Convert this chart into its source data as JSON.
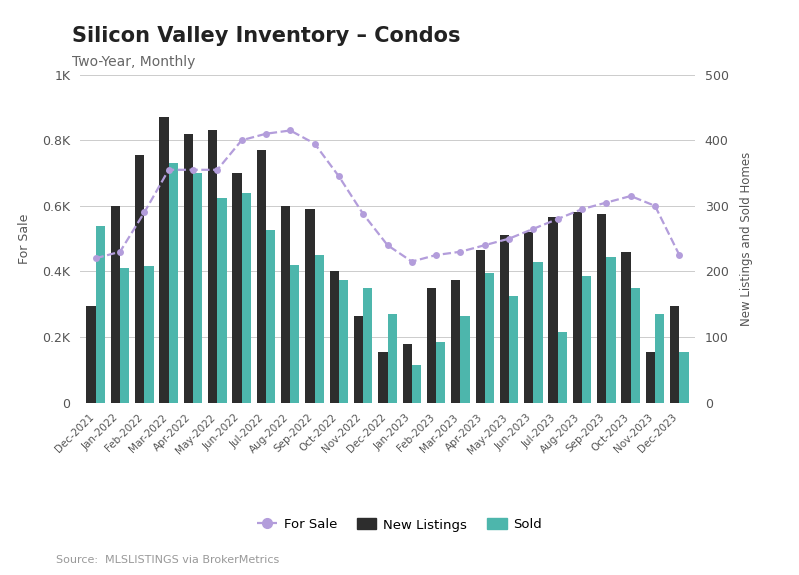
{
  "title": "Silicon Valley Inventory – Condos",
  "subtitle": "Two-Year, Monthly",
  "source": "Source:  MLSLISTINGS via BrokerMetrics",
  "months": [
    "Dec-2021",
    "Jan-2022",
    "Feb-2022",
    "Mar-2022",
    "Apr-2022",
    "May-2022",
    "Jun-2022",
    "Jul-2022",
    "Aug-2022",
    "Sep-2022",
    "Oct-2022",
    "Nov-2022",
    "Dec-2022",
    "Jan-2023",
    "Feb-2023",
    "Mar-2023",
    "Apr-2023",
    "May-2023",
    "Jun-2023",
    "Jul-2023",
    "Aug-2023",
    "Sep-2023",
    "Oct-2023",
    "Nov-2023",
    "Dec-2023"
  ],
  "for_sale": [
    440,
    460,
    580,
    710,
    710,
    710,
    800,
    820,
    830,
    790,
    690,
    575,
    480,
    430,
    450,
    460,
    480,
    500,
    530,
    560,
    590,
    610,
    630,
    600,
    450
  ],
  "new_listings": [
    295,
    600,
    755,
    870,
    820,
    830,
    700,
    770,
    600,
    590,
    400,
    265,
    155,
    180,
    350,
    375,
    465,
    510,
    520,
    565,
    580,
    575,
    460,
    155,
    295
  ],
  "sold": [
    540,
    410,
    415,
    730,
    700,
    625,
    640,
    525,
    420,
    450,
    375,
    350,
    270,
    115,
    185,
    265,
    395,
    325,
    430,
    215,
    385,
    445,
    350,
    270,
    155
  ],
  "for_sale_color": "#b39ddb",
  "new_listings_color": "#2d2d2d",
  "sold_color": "#4db6ac",
  "background_color": "#ffffff",
  "ylim_left": [
    0,
    1000
  ],
  "ylim_right": [
    0,
    500
  ],
  "ylabel_left": "For Sale",
  "ylabel_right": "New Listings and Sold Homes",
  "title_fontsize": 15,
  "subtitle_fontsize": 10,
  "source_fontsize": 8,
  "grid_color": "#cccccc",
  "bar_width": 0.38
}
